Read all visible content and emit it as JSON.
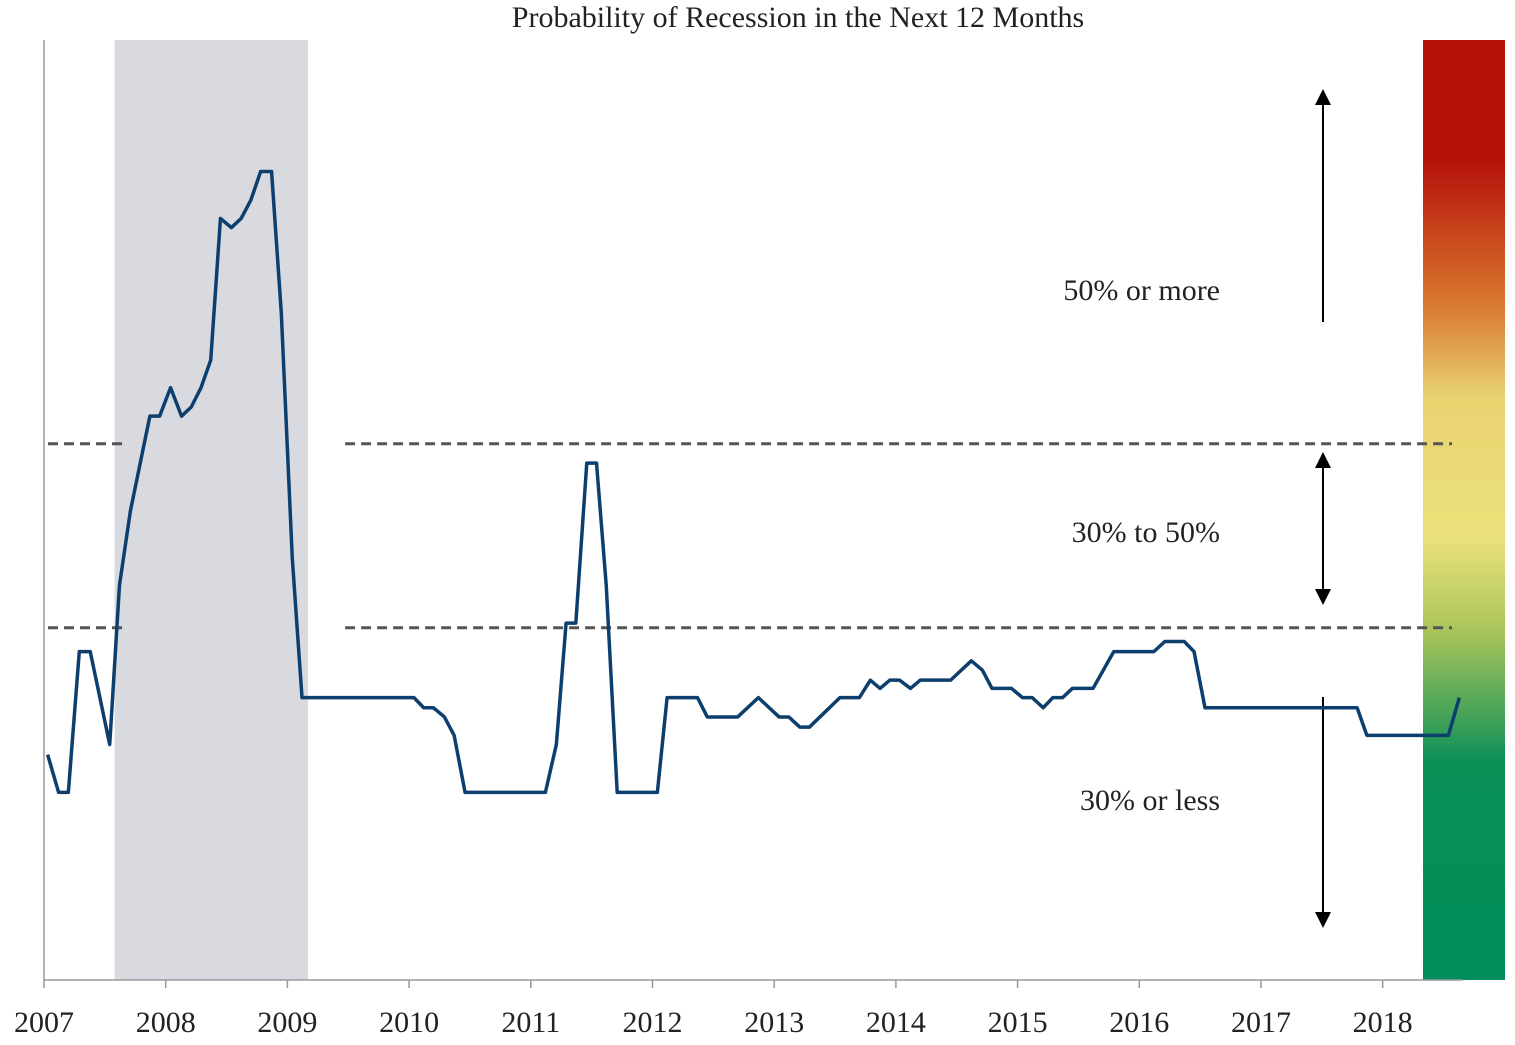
{
  "chart_data": {
    "type": "line",
    "title": "Probability of Recession in the Next 12 Months",
    "x": [
      2007.03,
      2007.12,
      2007.2,
      2007.29,
      2007.38,
      2007.54,
      2007.62,
      2007.71,
      2007.87,
      2007.95,
      2008.04,
      2008.13,
      2008.21,
      2008.29,
      2008.37,
      2008.45,
      2008.54,
      2008.62,
      2008.7,
      2008.78,
      2008.87,
      2008.95,
      2009.04,
      2009.12,
      2010.04,
      2010.12,
      2010.2,
      2010.29,
      2010.37,
      2010.46,
      2011.12,
      2011.21,
      2011.29,
      2011.37,
      2011.46,
      2011.54,
      2011.62,
      2011.71,
      2012.04,
      2012.12,
      2012.37,
      2012.45,
      2012.7,
      2012.87,
      2013.04,
      2013.12,
      2013.21,
      2013.29,
      2013.54,
      2013.7,
      2013.79,
      2013.87,
      2013.95,
      2014.03,
      2014.12,
      2014.2,
      2014.45,
      2014.62,
      2014.71,
      2014.79,
      2014.95,
      2015.04,
      2015.12,
      2015.21,
      2015.29,
      2015.37,
      2015.45,
      2015.62,
      2015.79,
      2016.12,
      2016.21,
      2016.37,
      2016.45,
      2016.54,
      2017.79,
      2017.87,
      2018.54,
      2018.63
    ],
    "series": [
      {
        "name": "Probability of recession",
        "color": "#0d3f6e",
        "values": [
          16.2,
          12.1,
          12.1,
          27.4,
          27.4,
          17.3,
          34.6,
          42.7,
          53.0,
          53.0,
          56.1,
          53.0,
          54.0,
          56.1,
          59.1,
          74.5,
          73.5,
          74.5,
          76.5,
          79.6,
          79.6,
          64.2,
          37.6,
          22.4,
          22.4,
          21.3,
          21.3,
          20.3,
          18.3,
          12.1,
          12.1,
          17.3,
          30.5,
          30.5,
          47.9,
          47.9,
          34.6,
          12.1,
          12.1,
          22.4,
          22.4,
          20.3,
          20.3,
          22.4,
          20.3,
          20.3,
          19.2,
          19.2,
          22.4,
          22.4,
          24.3,
          23.4,
          24.3,
          24.3,
          23.4,
          24.3,
          24.3,
          26.4,
          25.4,
          23.4,
          23.4,
          22.4,
          22.4,
          21.3,
          22.4,
          22.4,
          23.4,
          23.4,
          27.4,
          27.4,
          28.5,
          28.5,
          27.4,
          21.3,
          21.3,
          18.3,
          18.3,
          22.4
        ]
      }
    ],
    "xlim": [
      2007,
      2018.66
    ],
    "xticks": [
      2007,
      2008,
      2009,
      2010,
      2011,
      2012,
      2013,
      2014,
      2015,
      2016,
      2017,
      2018
    ],
    "ylim": [
      -8.3,
      93.9
    ],
    "reference_lines": [
      50,
      30
    ],
    "shaded_ranges": [
      [
        2007.58,
        2009.17
      ]
    ],
    "annotations": [
      "50% or more",
      "30% to 50%",
      "30% or less"
    ]
  }
}
